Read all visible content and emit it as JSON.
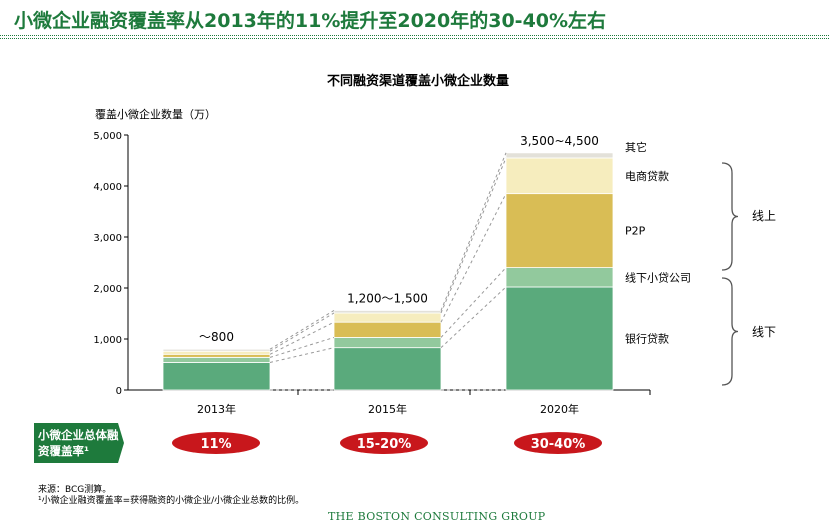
{
  "header": {
    "title": "小微企业融资覆盖率从2013年的11%提升至2020年的30-40%左右"
  },
  "chart_data": {
    "type": "bar",
    "stacked": true,
    "title": "不同融资渠道覆盖小微企业数量",
    "ylabel": "覆盖小微企业数量（万）",
    "ylim": [
      0,
      5000
    ],
    "yticks": [
      "0",
      "1,000",
      "2,000",
      "3,000",
      "4,000",
      "5,000"
    ],
    "categories": [
      "2013年",
      "2015年",
      "2020年"
    ],
    "totals_labels": [
      "～800",
      "1,200～1,500",
      "3,500~4,500"
    ],
    "series": [
      {
        "name": "银行贷款",
        "color": "#5aaa7c",
        "values": [
          540,
          830,
          2020
        ]
      },
      {
        "name": "线下小贷公司",
        "color": "#92c99d",
        "values": [
          100,
          200,
          380
        ]
      },
      {
        "name": "P2P",
        "color": "#d9bd55",
        "values": [
          60,
          300,
          1450
        ]
      },
      {
        "name": "电商贷款",
        "color": "#f6edbe",
        "values": [
          60,
          180,
          700
        ]
      },
      {
        "name": "其它",
        "color": "#e3e1d9",
        "values": [
          40,
          50,
          100
        ]
      }
    ],
    "groups": [
      {
        "label": "线上",
        "series": [
          "P2P",
          "电商贷款",
          "其它"
        ]
      },
      {
        "label": "线下",
        "series": [
          "银行贷款",
          "线下小贷公司"
        ]
      }
    ],
    "coverage_label": "小微企业总体融资覆盖率¹",
    "coverage": [
      "11%",
      "15-20%",
      "30-40%"
    ]
  },
  "colors": {
    "accent": "#1e7a3c",
    "badge": "#c8171c"
  },
  "footnotes": {
    "source": "来源：BCG测算。",
    "note": "¹小微企业融资覆盖率=获得融资的小微企业/小微企业总数的比例。"
  },
  "brand": "THE BOSTON CONSULTING GROUP"
}
